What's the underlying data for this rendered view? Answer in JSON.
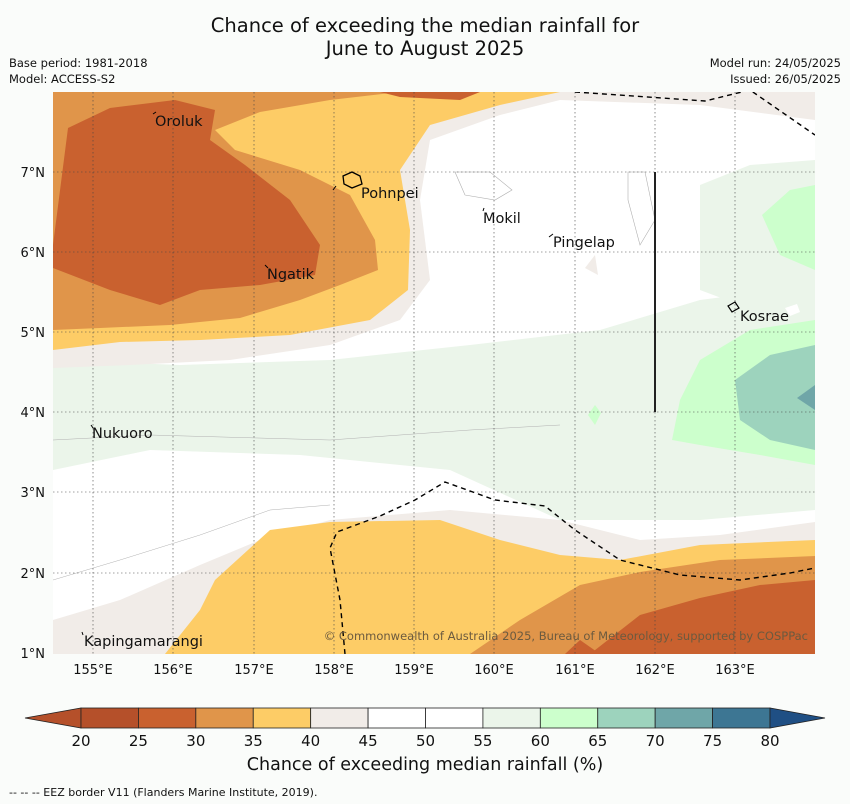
{
  "title_line1": "Chance of exceeding the median rainfall for",
  "title_line2": "June to August 2025",
  "meta": {
    "base_period": "Base period: 1981-2018",
    "model": "Model: ACCESS-S2",
    "model_run": "Model run: 24/05/2025",
    "issued": "Issued: 26/05/2025"
  },
  "places": {
    "oroluk": "Oroluk",
    "pohnpei": "Pohnpei",
    "mokil": "Mokil",
    "pingelap": "Pingelap",
    "ngatik": "Ngatik",
    "kosrae": "Kosrae",
    "nukuoro": "Nukuoro",
    "kapingamarangi": "Kapingamarangi"
  },
  "lat_ticks": [
    "7°N",
    "6°N",
    "5°N",
    "4°N",
    "3°N",
    "2°N",
    "1°N"
  ],
  "lon_ticks": [
    "155°E",
    "156°E",
    "157°E",
    "158°E",
    "159°E",
    "160°E",
    "161°E",
    "162°E",
    "163°E"
  ],
  "copyright": "© Commonwealth of Australia 2025, Bureau of Meteorology, supported by COSPPac",
  "colorbar": {
    "labels": [
      "20",
      "25",
      "30",
      "35",
      "40",
      "45",
      "50",
      "55",
      "60",
      "65",
      "70",
      "75",
      "80"
    ],
    "colors": [
      "#b5502a",
      "#c9612f",
      "#e0954a",
      "#fdcc66",
      "#f1ece8",
      "#ffffff",
      "#ffffff",
      "#ebf5ea",
      "#ccffcc",
      "#9dd3bd",
      "#6fa6a8",
      "#3d7693",
      "#1f4f84"
    ],
    "title": "Chance of exceeding median rainfall (%)"
  },
  "footer": "--  --  -- EEZ border V11 (Flanders Marine Institute, 2019)."
}
